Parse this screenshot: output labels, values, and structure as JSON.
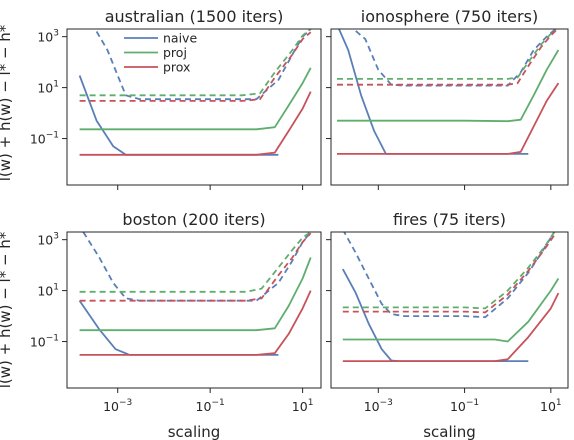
{
  "figure": {
    "ylabel": "l(w) + h(w) − l* − h*",
    "colors": {
      "naive": "#5a7fb8",
      "proj": "#5fae6e",
      "prox": "#c8525a"
    }
  },
  "chart_data": [
    {
      "type": "line",
      "title": "australian (1500 iters)",
      "xlabel": "",
      "ylabel": "l(w) + h(w) − l* − h*",
      "xscale": "log",
      "yscale": "log",
      "xlim": [
        8e-05,
        25
      ],
      "ylim": [
        0.0015,
        2000
      ],
      "xticks": [
        {
          "v": 0.001,
          "label": "10^-3"
        },
        {
          "v": 0.1,
          "label": "10^-1"
        },
        {
          "v": 10,
          "label": "10^1"
        }
      ],
      "yticks": [
        {
          "v": 0.1,
          "label": "10^-1"
        },
        {
          "v": 10,
          "label": "10^1"
        },
        {
          "v": 1000,
          "label": "10^3"
        }
      ],
      "legend": {
        "position": "top-left",
        "entries": [
          "naive",
          "proj",
          "prox"
        ]
      },
      "series": [
        {
          "name": "naive",
          "style": "solid",
          "x": [
            0.00015,
            0.00035,
            0.0008,
            0.0015,
            0.003,
            0.01,
            0.1,
            1,
            3
          ],
          "y": [
            30,
            0.5,
            0.05,
            0.023,
            0.023,
            0.023,
            0.023,
            0.023,
            0.023
          ]
        },
        {
          "name": "naive",
          "style": "dashed",
          "x": [
            0.00035,
            0.0006,
            0.001,
            0.0015,
            0.003,
            0.01,
            0.1,
            1,
            3,
            6,
            10,
            15
          ],
          "y": [
            1600,
            300,
            30,
            5,
            3.5,
            3.5,
            3.5,
            3.5,
            20,
            200,
            1000,
            2000
          ]
        },
        {
          "name": "proj",
          "style": "solid",
          "x": [
            0.00015,
            0.001,
            0.01,
            0.1,
            1,
            2.5,
            5,
            10,
            15
          ],
          "y": [
            0.23,
            0.23,
            0.23,
            0.23,
            0.23,
            0.28,
            2,
            15,
            60
          ]
        },
        {
          "name": "proj",
          "style": "dashed",
          "x": [
            0.00015,
            0.001,
            0.01,
            0.1,
            0.5,
            1.2,
            2.5,
            6,
            10,
            15
          ],
          "y": [
            5,
            5,
            5,
            5,
            5,
            6,
            40,
            300,
            1100,
            2000
          ]
        },
        {
          "name": "prox",
          "style": "solid",
          "x": [
            0.00015,
            0.001,
            0.01,
            0.1,
            1,
            2.5,
            5,
            10,
            15
          ],
          "y": [
            0.023,
            0.023,
            0.023,
            0.023,
            0.023,
            0.028,
            0.2,
            1.5,
            7
          ]
        },
        {
          "name": "prox",
          "style": "dashed",
          "x": [
            0.00015,
            0.001,
            0.01,
            0.1,
            0.5,
            1.2,
            2.5,
            6,
            10,
            15
          ],
          "y": [
            3,
            3,
            3,
            3,
            3,
            3.5,
            25,
            200,
            800,
            1500
          ]
        }
      ]
    },
    {
      "type": "line",
      "title": "ionosphere (750 iters)",
      "xlabel": "",
      "ylabel": "",
      "xscale": "log",
      "yscale": "log",
      "xlim": [
        8e-05,
        25
      ],
      "ylim": [
        0.0015,
        2000
      ],
      "xticks": [
        {
          "v": 0.001,
          "label": "10^-3"
        },
        {
          "v": 0.1,
          "label": "10^-1"
        },
        {
          "v": 10,
          "label": "10^1"
        }
      ],
      "yticks": [
        {
          "v": 0.1,
          "label": ""
        },
        {
          "v": 10,
          "label": ""
        },
        {
          "v": 1000,
          "label": ""
        }
      ],
      "series": [
        {
          "name": "naive",
          "style": "solid",
          "x": [
            0.00011,
            0.0002,
            0.0004,
            0.0008,
            0.0015,
            0.003,
            0.01,
            0.1,
            1,
            3
          ],
          "y": [
            3000,
            300,
            5,
            0.2,
            0.025,
            0.025,
            0.025,
            0.025,
            0.025,
            0.025
          ]
        },
        {
          "name": "naive",
          "style": "dashed",
          "x": [
            0.0002,
            0.0005,
            0.001,
            0.002,
            0.004,
            0.01,
            0.1,
            1,
            2,
            4,
            8,
            15
          ],
          "y": [
            3000,
            800,
            50,
            13,
            12,
            12,
            12,
            12,
            40,
            300,
            1000,
            2500
          ]
        },
        {
          "name": "proj",
          "style": "solid",
          "x": [
            0.00011,
            0.001,
            0.01,
            0.1,
            1,
            2,
            4,
            8,
            15
          ],
          "y": [
            0.5,
            0.5,
            0.5,
            0.5,
            0.48,
            0.55,
            5,
            50,
            300
          ]
        },
        {
          "name": "proj",
          "style": "dashed",
          "x": [
            0.00011,
            0.001,
            0.01,
            0.1,
            1,
            1.7,
            3,
            6,
            10,
            15
          ],
          "y": [
            22,
            22,
            22,
            22,
            22,
            25,
            100,
            500,
            1300,
            2500
          ]
        },
        {
          "name": "prox",
          "style": "solid",
          "x": [
            0.00011,
            0.001,
            0.01,
            0.1,
            1,
            2,
            4,
            8,
            15
          ],
          "y": [
            0.025,
            0.025,
            0.025,
            0.025,
            0.025,
            0.03,
            0.3,
            3,
            15
          ]
        },
        {
          "name": "prox",
          "style": "dashed",
          "x": [
            0.00011,
            0.001,
            0.01,
            0.1,
            1,
            1.7,
            3,
            6,
            10,
            15
          ],
          "y": [
            13,
            13,
            13,
            13,
            13,
            15,
            70,
            400,
            1100,
            2200
          ]
        }
      ]
    },
    {
      "type": "line",
      "title": "boston (200 iters)",
      "xlabel": "scaling",
      "ylabel": "l(w) + h(w) − l* − h*",
      "xscale": "log",
      "yscale": "log",
      "xlim": [
        8e-05,
        25
      ],
      "ylim": [
        0.0015,
        2000
      ],
      "xticks": [
        {
          "v": 0.001,
          "label": "10^-3"
        },
        {
          "v": 0.1,
          "label": "10^-1"
        },
        {
          "v": 10,
          "label": "10^1"
        }
      ],
      "yticks": [
        {
          "v": 0.1,
          "label": "10^-1"
        },
        {
          "v": 10,
          "label": "10^1"
        },
        {
          "v": 1000,
          "label": "10^3"
        }
      ],
      "series": [
        {
          "name": "naive",
          "style": "solid",
          "x": [
            0.00015,
            0.0004,
            0.0009,
            0.0018,
            0.003,
            0.01,
            0.1,
            1,
            3
          ],
          "y": [
            4,
            0.3,
            0.05,
            0.03,
            0.03,
            0.03,
            0.03,
            0.03,
            0.03
          ]
        },
        {
          "name": "naive",
          "style": "dashed",
          "x": [
            0.00018,
            0.0004,
            0.0008,
            0.0015,
            0.003,
            0.01,
            0.1,
            1,
            3,
            6,
            10,
            15
          ],
          "y": [
            2000,
            200,
            20,
            5,
            4,
            4,
            4,
            4,
            20,
            150,
            800,
            2000
          ]
        },
        {
          "name": "proj",
          "style": "solid",
          "x": [
            0.00015,
            0.001,
            0.01,
            0.1,
            1,
            2.5,
            5,
            10,
            15
          ],
          "y": [
            0.28,
            0.28,
            0.28,
            0.28,
            0.28,
            0.33,
            2.5,
            30,
            200
          ]
        },
        {
          "name": "proj",
          "style": "dashed",
          "x": [
            0.00015,
            0.001,
            0.01,
            0.1,
            0.6,
            1.3,
            3,
            6,
            10,
            15
          ],
          "y": [
            9,
            9,
            9,
            9,
            9,
            12,
            80,
            400,
            1200,
            2000
          ]
        },
        {
          "name": "prox",
          "style": "solid",
          "x": [
            0.00015,
            0.001,
            0.01,
            0.1,
            1,
            2.5,
            5,
            10,
            15
          ],
          "y": [
            0.03,
            0.03,
            0.03,
            0.03,
            0.03,
            0.035,
            0.2,
            2,
            10
          ]
        },
        {
          "name": "prox",
          "style": "dashed",
          "x": [
            0.00015,
            0.001,
            0.01,
            0.1,
            0.6,
            1.3,
            3,
            6,
            10,
            15
          ],
          "y": [
            4,
            4,
            4,
            4,
            4,
            5,
            40,
            200,
            800,
            1800
          ]
        }
      ]
    },
    {
      "type": "line",
      "title": "fires (75 iters)",
      "xlabel": "scaling",
      "ylabel": "",
      "xscale": "log",
      "yscale": "log",
      "xlim": [
        8e-05,
        25
      ],
      "ylim": [
        0.0015,
        2000
      ],
      "xticks": [
        {
          "v": 0.001,
          "label": "10^-3"
        },
        {
          "v": 0.1,
          "label": "10^-1"
        },
        {
          "v": 10,
          "label": "10^1"
        }
      ],
      "yticks": [
        {
          "v": 0.1,
          "label": ""
        },
        {
          "v": 10,
          "label": ""
        },
        {
          "v": 1000,
          "label": ""
        }
      ],
      "series": [
        {
          "name": "naive",
          "style": "solid",
          "x": [
            0.00015,
            0.0003,
            0.0006,
            0.0012,
            0.002,
            0.003,
            0.01,
            0.1,
            1,
            3
          ],
          "y": [
            70,
            8,
            0.5,
            0.05,
            0.018,
            0.017,
            0.017,
            0.017,
            0.017,
            0.017
          ]
        },
        {
          "name": "naive",
          "style": "dashed",
          "x": [
            0.00015,
            0.0003,
            0.0006,
            0.0012,
            0.002,
            0.004,
            0.01,
            0.1,
            0.3,
            1,
            3,
            6,
            12
          ],
          "y": [
            2500,
            300,
            30,
            3,
            1.2,
            1,
            1,
            1,
            0.9,
            5,
            50,
            300,
            2000
          ]
        },
        {
          "name": "proj",
          "style": "solid",
          "x": [
            0.00015,
            0.001,
            0.01,
            0.1,
            0.5,
            1,
            3,
            10,
            15
          ],
          "y": [
            0.12,
            0.12,
            0.12,
            0.12,
            0.12,
            0.1,
            0.6,
            10,
            30
          ]
        },
        {
          "name": "proj",
          "style": "dashed",
          "x": [
            0.00015,
            0.001,
            0.01,
            0.1,
            0.3,
            1,
            3,
            7,
            12
          ],
          "y": [
            2.2,
            2.2,
            2.2,
            2.2,
            2,
            10,
            80,
            500,
            2000
          ]
        },
        {
          "name": "prox",
          "style": "solid",
          "x": [
            0.00015,
            0.001,
            0.01,
            0.1,
            0.5,
            1,
            3,
            10,
            15
          ],
          "y": [
            0.017,
            0.017,
            0.017,
            0.017,
            0.017,
            0.02,
            0.15,
            2,
            8
          ]
        },
        {
          "name": "prox",
          "style": "dashed",
          "x": [
            0.00015,
            0.001,
            0.01,
            0.1,
            0.3,
            1,
            3,
            7,
            12
          ],
          "y": [
            1.5,
            1.5,
            1.5,
            1.5,
            1.4,
            7,
            60,
            400,
            1500
          ]
        }
      ]
    }
  ]
}
